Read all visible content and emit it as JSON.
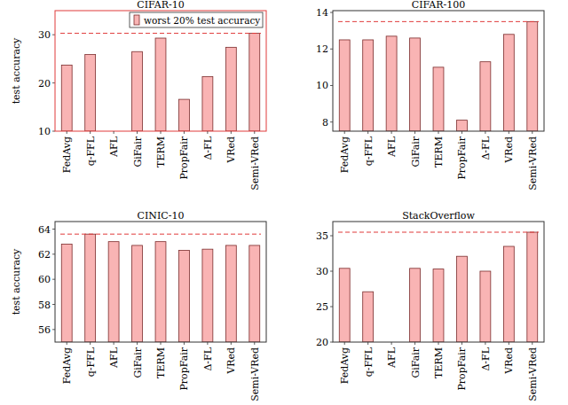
{
  "chart_data": [
    {
      "type": "bar",
      "title": "CIFAR-10",
      "y_label": "test accuracy",
      "categories": [
        "FedAvg",
        "q-FFL",
        "AFL",
        "GiFair",
        "TERM",
        "PropFair",
        "Δ-FL",
        "VRed",
        "Semi-VRed"
      ],
      "series": [
        {
          "name": "worst 20% test accuracy",
          "color": "#f9b4b4",
          "values": [
            23.7,
            25.9,
            null,
            26.5,
            29.3,
            16.6,
            21.3,
            27.4,
            30.3
          ]
        }
      ],
      "reference_line": 30.3,
      "ylim": [
        10,
        35
      ],
      "yticks": [
        10,
        20,
        30
      ],
      "legend": "top right"
    },
    {
      "type": "bar",
      "title": "CIFAR-100",
      "categories": [
        "FedAvg",
        "q-FFL",
        "AFL",
        "GiFair",
        "TERM",
        "PropFair",
        "Δ-FL",
        "VRed",
        "Semi-VRed"
      ],
      "series": [
        {
          "color": "#f9b4b4",
          "values": [
            12.5,
            12.5,
            12.7,
            12.6,
            11.0,
            8.1,
            11.3,
            12.8,
            13.5
          ]
        }
      ],
      "reference_line": 13.5,
      "ylim": [
        7.5,
        14.1
      ],
      "yticks": [
        8,
        10,
        12,
        14
      ]
    },
    {
      "type": "bar",
      "title": "CINIC-10",
      "y_label": "test accuracy",
      "categories": [
        "FedAvg",
        "q-FFL",
        "AFL",
        "GiFair",
        "TERM",
        "PropFair",
        "Δ-FL",
        "VRed",
        "Semi-VRed"
      ],
      "series": [
        {
          "color": "#f9b4b4",
          "values": [
            62.8,
            63.6,
            63.0,
            62.7,
            63.0,
            62.3,
            62.4,
            62.7,
            62.7
          ]
        }
      ],
      "reference_line": 63.6,
      "ylim": [
        55,
        64.6
      ],
      "yticks": [
        56,
        58,
        60,
        62,
        64
      ]
    },
    {
      "type": "bar",
      "title": "StackOverflow",
      "categories": [
        "FedAvg",
        "q-FFL",
        "AFL",
        "GiFair",
        "TERM",
        "PropFair",
        "Δ-FL",
        "VRed",
        "Semi-VRed"
      ],
      "series": [
        {
          "color": "#f9b4b4",
          "values": [
            30.4,
            27.1,
            null,
            30.4,
            30.3,
            32.1,
            30.0,
            33.5,
            35.5
          ]
        }
      ],
      "reference_line": 35.5,
      "ylim": [
        20,
        37
      ],
      "yticks": [
        20,
        25,
        30,
        35
      ]
    }
  ]
}
